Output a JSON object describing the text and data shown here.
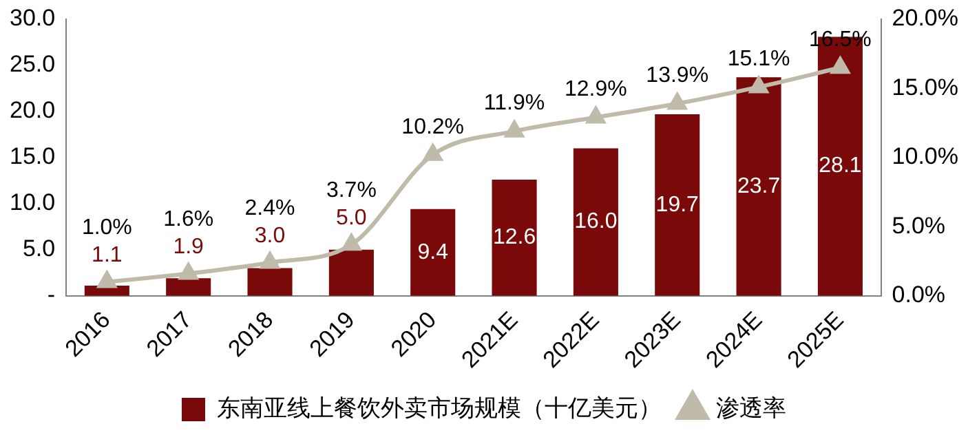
{
  "chart_data": {
    "type": "bar",
    "categories": [
      "2016",
      "2017",
      "2018",
      "2019",
      "2020",
      "2021E",
      "2022E",
      "2023E",
      "2024E",
      "2025E"
    ],
    "series": [
      {
        "name": "东南亚线上餐饮外卖市场规模（十亿美元）",
        "color": "#7a0a0a",
        "values": [
          1.1,
          1.9,
          3.0,
          5.0,
          9.4,
          12.6,
          16.0,
          19.7,
          23.7,
          28.1
        ],
        "value_labels": [
          "1.1",
          "1.9",
          "3.0",
          "5.0",
          "9.4",
          "12.6",
          "16.0",
          "19.7",
          "23.7",
          "28.1"
        ]
      },
      {
        "name": "渗透率",
        "type": "line",
        "axis": "y2",
        "color": "#bfbaa9",
        "marker": "triangle",
        "values": [
          1.0,
          1.6,
          2.4,
          3.7,
          10.2,
          11.9,
          12.9,
          13.9,
          15.1,
          16.5
        ],
        "value_labels": [
          "1.0%",
          "1.6%",
          "2.4%",
          "3.7%",
          "10.2%",
          "11.9%",
          "12.9%",
          "13.9%",
          "15.1%",
          "16.5%"
        ]
      }
    ],
    "ylim": [
      0,
      30
    ],
    "yticks": [
      {
        "value": 0,
        "label": "-"
      },
      {
        "value": 5,
        "label": "5.0"
      },
      {
        "value": 10,
        "label": "10.0"
      },
      {
        "value": 15,
        "label": "15.0"
      },
      {
        "value": 20,
        "label": "20.0"
      },
      {
        "value": 25,
        "label": "25.0"
      },
      {
        "value": 30,
        "label": "30.0"
      }
    ],
    "y2lim": [
      0,
      20
    ],
    "y2ticks": [
      {
        "value": 0,
        "label": "0.0%"
      },
      {
        "value": 5,
        "label": "5.0%"
      },
      {
        "value": 10,
        "label": "10.0%"
      },
      {
        "value": 15,
        "label": "15.0%"
      },
      {
        "value": 20,
        "label": "20.0%"
      }
    ],
    "grid": false,
    "legend": "bottom"
  }
}
